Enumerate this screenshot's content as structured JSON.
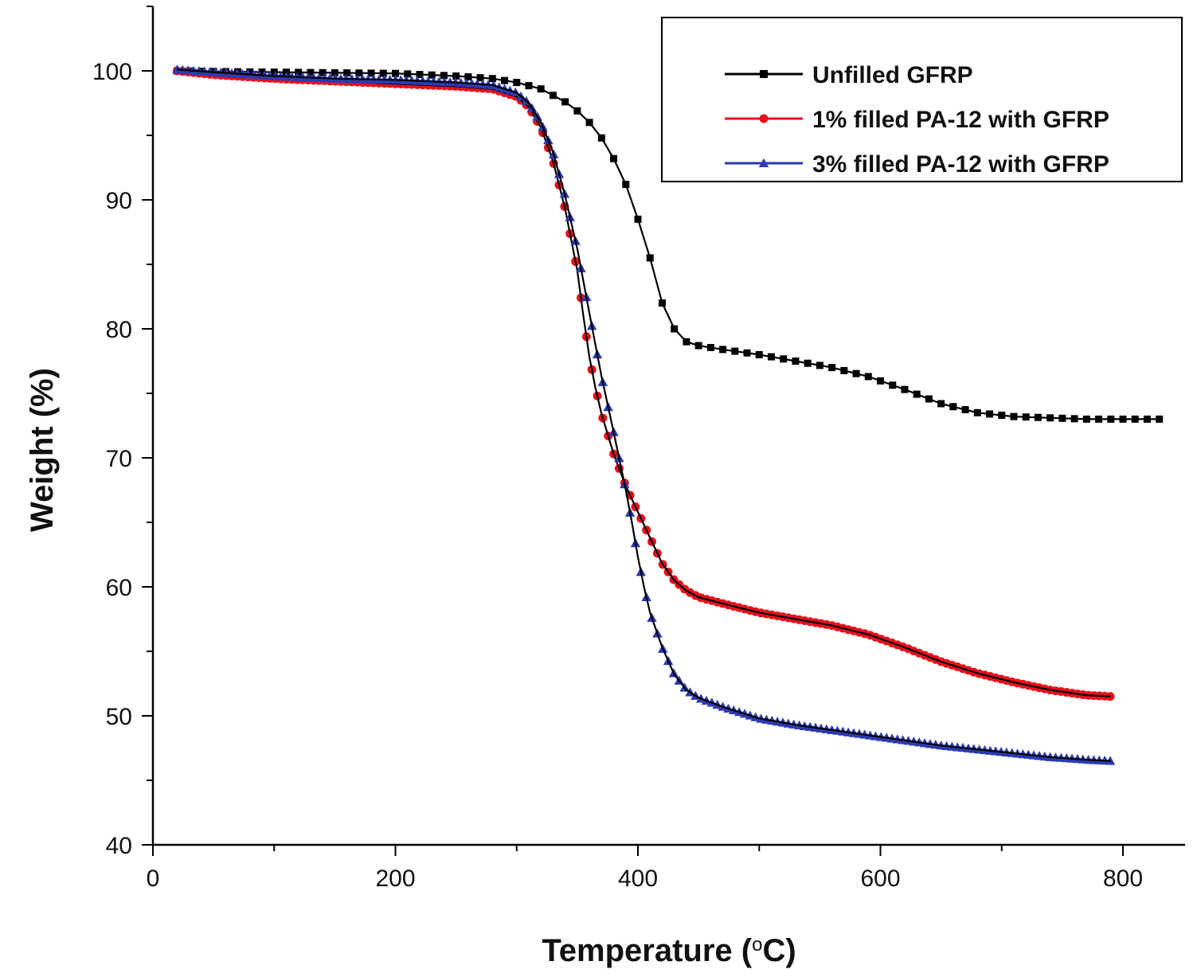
{
  "chart_data": {
    "type": "line",
    "title": "",
    "xlabel": "Temperature (°C)",
    "xlabel_parts": {
      "main": "Temperature (",
      "degree": "o",
      "unit": "C)"
    },
    "ylabel": "Weight (%)",
    "xlim": [
      0,
      840
    ],
    "ylim": [
      40,
      105
    ],
    "xticks": [
      0,
      200,
      400,
      600,
      800
    ],
    "yticks": [
      40,
      50,
      60,
      70,
      80,
      90,
      100
    ],
    "xtick_labels": [
      "0",
      "200",
      "400",
      "600",
      "800"
    ],
    "ytick_labels": [
      "40",
      "50",
      "60",
      "70",
      "80",
      "90",
      "100"
    ],
    "grid": false,
    "legend_position": "top-right",
    "series": [
      {
        "name": "Unfilled GFRP",
        "color": "#000000",
        "marker": "square",
        "x": [
          20,
          50,
          100,
          150,
          200,
          250,
          280,
          300,
          320,
          340,
          350,
          360,
          370,
          380,
          390,
          400,
          410,
          420,
          430,
          440,
          450,
          470,
          500,
          530,
          560,
          590,
          620,
          650,
          680,
          710,
          740,
          770,
          800,
          830
        ],
        "y": [
          100.0,
          99.95,
          99.9,
          99.85,
          99.8,
          99.6,
          99.4,
          99.1,
          98.6,
          97.6,
          96.9,
          96.0,
          94.8,
          93.2,
          91.2,
          88.5,
          85.5,
          82.0,
          80.0,
          79.0,
          78.7,
          78.4,
          78.0,
          77.5,
          77.0,
          76.3,
          75.3,
          74.2,
          73.5,
          73.2,
          73.1,
          73.0,
          73.0,
          73.0
        ]
      },
      {
        "name": "1% filled PA-12 with GFRP",
        "color": "#e8101c",
        "marker": "circle",
        "x": [
          20,
          50,
          100,
          150,
          200,
          250,
          280,
          300,
          310,
          320,
          330,
          340,
          350,
          355,
          360,
          365,
          370,
          380,
          390,
          400,
          410,
          420,
          430,
          440,
          450,
          470,
          500,
          530,
          560,
          590,
          620,
          650,
          680,
          710,
          740,
          770,
          790
        ],
        "y": [
          100.0,
          99.7,
          99.4,
          99.2,
          99.0,
          98.8,
          98.6,
          98.0,
          97.2,
          95.6,
          93.0,
          89.3,
          84.5,
          81.0,
          77.8,
          75.4,
          73.4,
          70.3,
          67.8,
          65.8,
          63.8,
          61.8,
          60.5,
          59.7,
          59.2,
          58.7,
          58.0,
          57.5,
          57.0,
          56.3,
          55.3,
          54.2,
          53.3,
          52.6,
          52.0,
          51.6,
          51.5
        ]
      },
      {
        "name": "3% filled PA-12 with GFRP",
        "color": "#2b3ab0",
        "marker": "triangle",
        "x": [
          20,
          50,
          100,
          150,
          200,
          250,
          280,
          300,
          310,
          320,
          330,
          340,
          350,
          360,
          370,
          380,
          390,
          395,
          400,
          405,
          410,
          420,
          430,
          440,
          450,
          470,
          500,
          530,
          560,
          590,
          620,
          650,
          680,
          710,
          740,
          770,
          790
        ],
        "y": [
          100.1,
          99.9,
          99.6,
          99.4,
          99.3,
          99.1,
          98.9,
          98.3,
          97.5,
          96.0,
          93.7,
          90.3,
          86.2,
          81.2,
          76.3,
          72.0,
          67.5,
          65.0,
          62.3,
          60.0,
          58.0,
          55.3,
          53.2,
          52.0,
          51.4,
          50.7,
          49.8,
          49.3,
          48.9,
          48.5,
          48.1,
          47.7,
          47.4,
          47.1,
          46.8,
          46.6,
          46.5
        ]
      }
    ]
  }
}
